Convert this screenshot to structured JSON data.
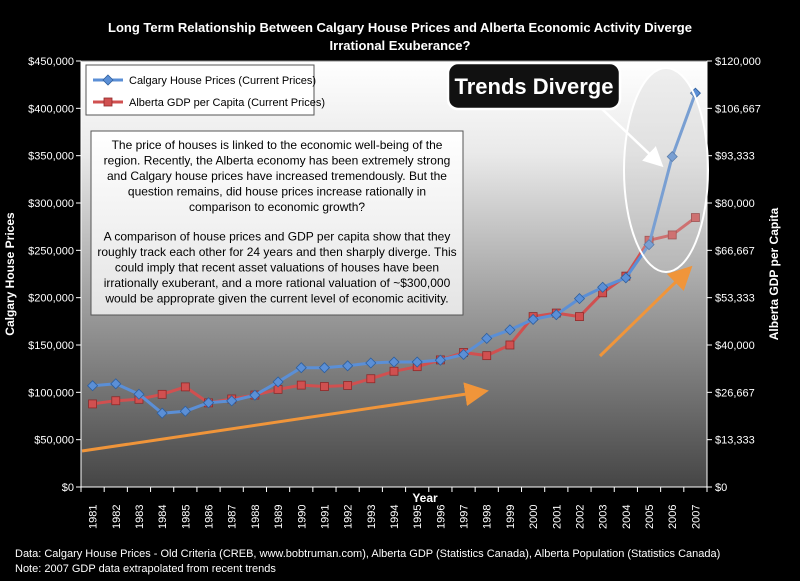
{
  "chart_data": {
    "type": "line",
    "title_lines": [
      "Long Term Relationship Between Calgary House Prices and  Alberta Economic Activity Diverge",
      "Irrational Exuberance?"
    ],
    "xlabel": "Year",
    "ylabel_left": "Calgary House Prices",
    "ylabel_right": "Alberta GDP per Capita",
    "x": [
      "1981",
      "1982",
      "1983",
      "1984",
      "1985",
      "1986",
      "1987",
      "1988",
      "1989",
      "1990",
      "1991",
      "1992",
      "1993",
      "1994",
      "1995",
      "1996",
      "1997",
      "1998",
      "1999",
      "2000",
      "2001",
      "2002",
      "2003",
      "2004",
      "2005",
      "2006",
      "2007"
    ],
    "y_left_ticks": [
      "$0",
      "$50,000",
      "$100,000",
      "$150,000",
      "$200,000",
      "$250,000",
      "$300,000",
      "$350,000",
      "$400,000",
      "$450,000"
    ],
    "y_right_ticks": [
      "$0",
      "$13,333",
      "$26,667",
      "$40,000",
      "$53,333",
      "$66,667",
      "$80,000",
      "$93,333",
      "$106,667",
      "$120,000"
    ],
    "ylim_left": [
      0,
      450000
    ],
    "ylim_right": [
      0,
      120000
    ],
    "series": [
      {
        "name": "Calgary House Prices (Current Prices)",
        "axis": "left",
        "color": "#5B8FD6",
        "marker": "diamond",
        "values": [
          107000,
          109000,
          98000,
          78000,
          80000,
          89000,
          91000,
          97000,
          111000,
          126000,
          126000,
          128000,
          131000,
          132000,
          132000,
          134000,
          140000,
          157000,
          166000,
          177000,
          182000,
          199000,
          211000,
          221000,
          256000,
          349000,
          416000
        ]
      },
      {
        "name": "Alberta GDP per Capita (Current Prices)",
        "axis": "right",
        "color": "#D05050",
        "marker": "square",
        "values": [
          23400,
          24300,
          24700,
          26100,
          28200,
          23700,
          24800,
          25900,
          27500,
          28700,
          28300,
          28600,
          30500,
          32600,
          33900,
          35800,
          37900,
          37000,
          40000,
          48000,
          49000,
          48000,
          54700,
          59400,
          69500,
          71000,
          75900
        ]
      }
    ],
    "legend": "top-left",
    "grid": false
  },
  "callout": {
    "paragraph1": [
      "The price of houses is linked to the economic well-being of the",
      "region.  Recently, the Alberta economy has been extremely strong",
      "and Calgary house prices have increased tremendously.  But the",
      "question remains, did house prices increase rationally in",
      "comparison to economic growth?"
    ],
    "paragraph2": [
      "A comparison of house prices and GDP per capita show that they",
      "roughly track each other for 24 years and then sharply diverge.  This",
      "could imply that recent asset valuations of houses have been",
      "irrationally exuberant, and a more rational valuation of ~$300,000",
      "would be approprate given the current level of economic acitivity."
    ]
  },
  "annotation": {
    "label": "Trends Diverge"
  },
  "footer": {
    "line1": "Data: Calgary House Prices - Old Criteria (CREB, www.bobtruman.com), Alberta GDP (Statistics Canada), Alberta Population (Statistics Canada)",
    "line2": "Note: 2007 GDP data extrapolated from recent trends"
  },
  "colors": {
    "plot_top": "#FFFFFF",
    "plot_bottom": "#454545",
    "arrow": "#F0953A",
    "house_series": "#5B8FD6",
    "gdp_series": "#D05050"
  }
}
